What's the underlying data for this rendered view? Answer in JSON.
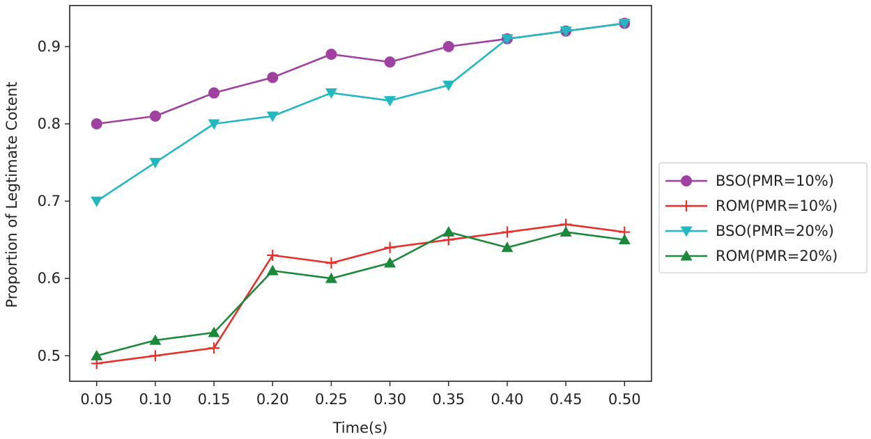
{
  "chart_data": {
    "type": "line",
    "title": "",
    "xlabel": "Time(s)",
    "ylabel": "Proportion of Legtimate Cotent",
    "x": [
      0.05,
      0.1,
      0.15,
      0.2,
      0.25,
      0.3,
      0.35,
      0.4,
      0.45,
      0.5
    ],
    "x_tick_labels": [
      "0.05",
      "0.10",
      "0.15",
      "0.20",
      "0.25",
      "0.30",
      "0.35",
      "0.40",
      "0.45",
      "0.50"
    ],
    "y_ticks": [
      0.5,
      0.6,
      0.7,
      0.8,
      0.9
    ],
    "y_tick_labels": [
      "0.5",
      "0.6",
      "0.7",
      "0.8",
      "0.9"
    ],
    "xlim": [
      0.027,
      0.523
    ],
    "ylim": [
      0.467,
      0.953
    ],
    "grid": false,
    "legend_position": "outside-right",
    "series": [
      {
        "name": "BSO(PMR=10%)",
        "color": "#a040a0",
        "marker": "circle",
        "values": [
          0.8,
          0.81,
          0.84,
          0.86,
          0.89,
          0.88,
          0.9,
          0.91,
          0.92,
          0.93
        ]
      },
      {
        "name": "ROM(PMR=10%)",
        "color": "#e8302a",
        "marker": "plus",
        "values": [
          0.49,
          0.5,
          0.51,
          0.63,
          0.62,
          0.64,
          0.65,
          0.66,
          0.67,
          0.66
        ]
      },
      {
        "name": "BSO(PMR=20%)",
        "color": "#22b8c0",
        "marker": "triangle-down",
        "values": [
          0.7,
          0.75,
          0.8,
          0.81,
          0.84,
          0.83,
          0.85,
          0.91,
          0.92,
          0.93
        ]
      },
      {
        "name": "ROM(PMR=20%)",
        "color": "#1a8a3a",
        "marker": "triangle-up",
        "values": [
          0.5,
          0.52,
          0.53,
          0.61,
          0.6,
          0.62,
          0.66,
          0.64,
          0.66,
          0.65
        ]
      }
    ]
  }
}
